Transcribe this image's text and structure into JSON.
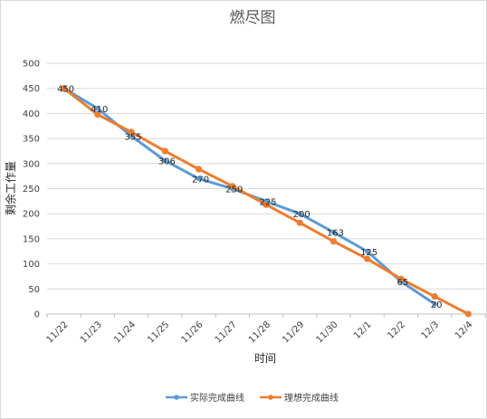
{
  "chart_data": {
    "type": "line",
    "title": "燃尽图",
    "xlabel": "时间",
    "ylabel": "剩余工作量",
    "categories": [
      "11/22",
      "11/23",
      "11/24",
      "11/25",
      "11/26",
      "11/27",
      "11/28",
      "11/29",
      "11/30",
      "12/1",
      "12/2",
      "12/3",
      "12/4"
    ],
    "ylim": [
      0,
      500
    ],
    "yticks": [
      0,
      50,
      100,
      150,
      200,
      250,
      300,
      350,
      400,
      450,
      500
    ],
    "grid": true,
    "legend": "bottom",
    "series": [
      {
        "name": "实际完成曲线",
        "color": "#5B9BD5",
        "values": [
          450,
          410,
          355,
          306,
          270,
          250,
          225,
          200,
          163,
          125,
          65,
          20,
          null
        ],
        "data_labels": [
          "450",
          "410",
          "355",
          "306",
          "270",
          "250",
          "225",
          "200",
          "163",
          "125",
          "65",
          "20",
          ""
        ]
      },
      {
        "name": "理想完成曲线",
        "color": "#ED7D31",
        "values": [
          450,
          398,
          363,
          325,
          289,
          255,
          218,
          182,
          145,
          110,
          70,
          35,
          0
        ],
        "data_labels": []
      }
    ]
  }
}
